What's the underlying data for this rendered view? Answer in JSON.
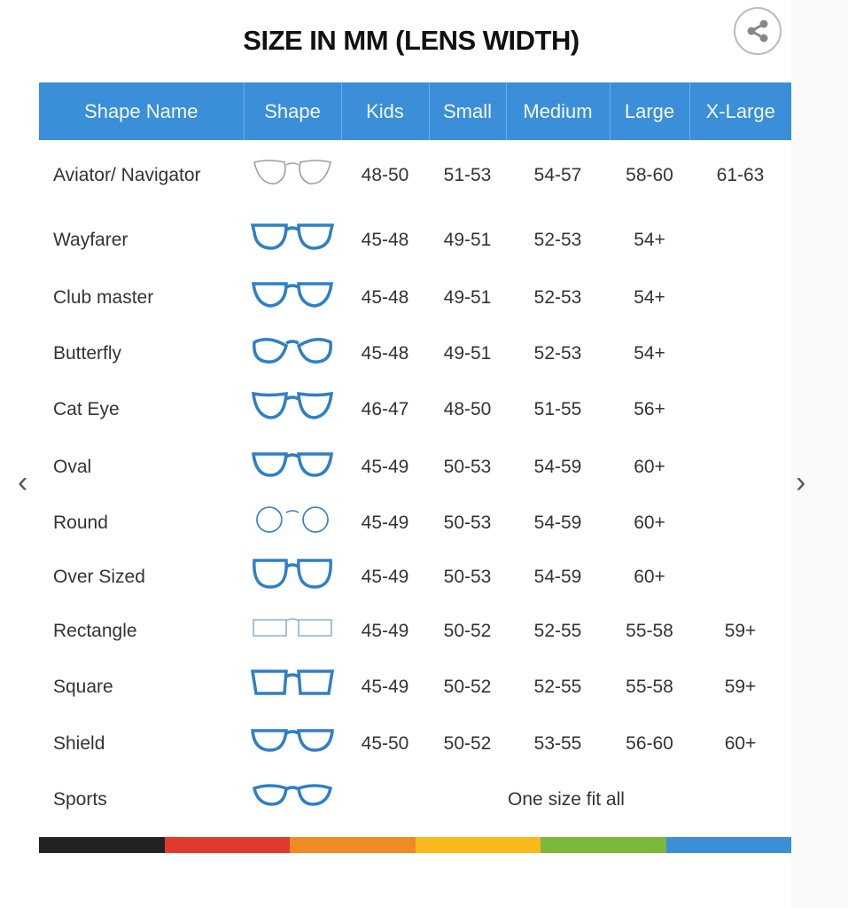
{
  "title": "SIZE IN MM (LENS WIDTH)",
  "share_icon": "share-icon",
  "header": [
    "Shape Name",
    "Shape",
    "Kids",
    "Small",
    "Medium",
    "Large",
    "X-Large"
  ],
  "rows": [
    {
      "name": "Aviator/ Navigator",
      "shape": "aviator",
      "color": "#9aa0a4",
      "sizes": [
        "48-50",
        "51-53",
        "54-57",
        "58-60",
        "61-63"
      ]
    },
    {
      "name": "Wayfarer",
      "shape": "wayfarer",
      "color": "#2f7fc8",
      "sizes": [
        "45-48",
        "49-51",
        "52-53",
        "54+",
        ""
      ]
    },
    {
      "name": "Club master",
      "shape": "clubmaster",
      "color": "#2f7fc8",
      "sizes": [
        "45-48",
        "49-51",
        "52-53",
        "54+",
        ""
      ]
    },
    {
      "name": "Butterfly",
      "shape": "butterfly",
      "color": "#2f7fc8",
      "sizes": [
        "45-48",
        "49-51",
        "52-53",
        "54+",
        ""
      ]
    },
    {
      "name": "Cat Eye",
      "shape": "cateye",
      "color": "#2f7fc8",
      "sizes": [
        "46-47",
        "48-50",
        "51-55",
        "56+",
        ""
      ]
    },
    {
      "name": "Oval",
      "shape": "oval",
      "color": "#2f7fc8",
      "sizes": [
        "45-49",
        "50-53",
        "54-59",
        "60+",
        ""
      ]
    },
    {
      "name": "Round",
      "shape": "round",
      "color": "#2f7fc8",
      "sizes": [
        "45-49",
        "50-53",
        "54-59",
        "60+",
        ""
      ]
    },
    {
      "name": "Over Sized",
      "shape": "oversized",
      "color": "#2f7fc8",
      "sizes": [
        "45-49",
        "50-53",
        "54-59",
        "60+",
        ""
      ]
    },
    {
      "name": "Rectangle",
      "shape": "rectangle",
      "color": "#8fb3cc",
      "sizes": [
        "45-49",
        "50-52",
        "52-55",
        "55-58",
        "59+"
      ]
    },
    {
      "name": "Square",
      "shape": "square",
      "color": "#2f7fc8",
      "sizes": [
        "45-49",
        "50-52",
        "52-55",
        "55-58",
        "59+"
      ]
    },
    {
      "name": "Shield",
      "shape": "shield",
      "color": "#2f7fc8",
      "sizes": [
        "45-50",
        "50-52",
        "53-55",
        "56-60",
        "60+"
      ]
    },
    {
      "name": "Sports",
      "shape": "sports",
      "color": "#2f7fc8",
      "span_text": "One size fit all"
    }
  ],
  "header_color": "#3a8fd8",
  "color_bar": [
    "#222222",
    "#e03a2f",
    "#f08a24",
    "#fbb81b",
    "#7cb83a",
    "#3a8fd8"
  ],
  "nav": {
    "prev_icon": "chevron-left-icon",
    "next_icon": "chevron-right-icon",
    "prev": "‹",
    "next": "›"
  }
}
